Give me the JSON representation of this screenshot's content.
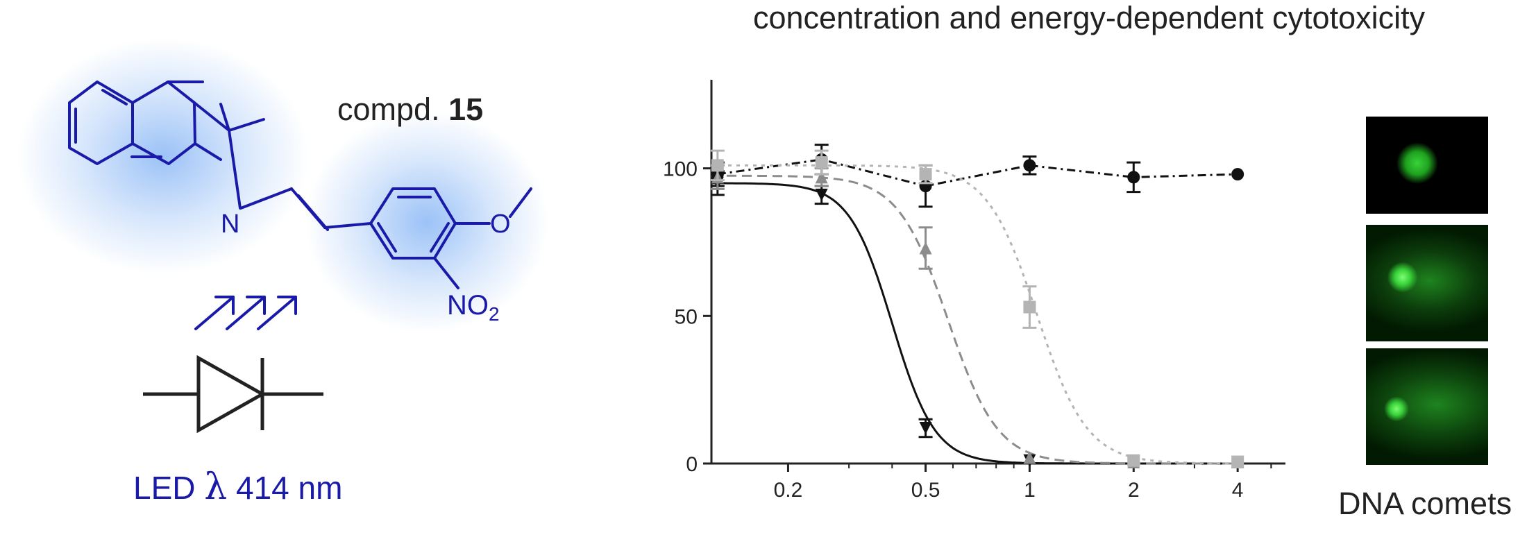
{
  "title": "concentration and energy-dependent cytotoxicity",
  "compound": {
    "prefix": "compd.",
    "number": "15"
  },
  "structure": {
    "n_label": "N",
    "o_label": "O",
    "no2_label": "NO",
    "no2_sub": "2"
  },
  "led": {
    "prefix": "LED",
    "lambda": "λ",
    "value": "414 nm"
  },
  "comets": {
    "label": "DNA comets",
    "panels": [
      {
        "tail": "none"
      },
      {
        "tail": "medium"
      },
      {
        "tail": "long"
      }
    ]
  },
  "colors": {
    "blue": "#1a1aa8",
    "glow": "#4a90f0",
    "series_black": "#111111",
    "series_darkgray": "#8c8c8c",
    "series_lightgray": "#b4b4b4",
    "comet": "#39d23a"
  },
  "chart_data": {
    "type": "scatter",
    "title": "",
    "xlabel": "",
    "ylabel": "",
    "xscale": "log",
    "xlim": [
      0.12,
      5.5
    ],
    "ylim": [
      0,
      130
    ],
    "x_ticks": [
      0.2,
      0.5,
      1,
      2,
      4
    ],
    "x_tick_labels": [
      "0.2",
      "0.5",
      "1",
      "2",
      "4"
    ],
    "y_ticks": [
      0,
      50,
      100
    ],
    "y_tick_labels": [
      "0",
      "50",
      "100"
    ],
    "grid": false,
    "legend": "none",
    "series": [
      {
        "marker": "circle",
        "line": "dash-dot",
        "color": "#111111",
        "points": [
          {
            "x": 0.125,
            "y": 98,
            "err": 4
          },
          {
            "x": 0.25,
            "y": 103,
            "err": 5
          },
          {
            "x": 0.5,
            "y": 94,
            "err": 7
          },
          {
            "x": 1,
            "y": 101,
            "err": 3
          },
          {
            "x": 2,
            "y": 97,
            "err": 5
          },
          {
            "x": 4,
            "y": 98,
            "err": 0
          }
        ],
        "fit": "connect"
      },
      {
        "marker": "triangle-down",
        "line": "solid",
        "color": "#111111",
        "points": [
          {
            "x": 0.125,
            "y": 95,
            "err": 4
          },
          {
            "x": 0.25,
            "y": 91,
            "err": 3
          },
          {
            "x": 0.5,
            "y": 12,
            "err": 3
          },
          {
            "x": 1,
            "y": 1,
            "err": 0
          },
          {
            "x": 2,
            "y": 0.5,
            "err": 0
          },
          {
            "x": 4,
            "y": 0.5,
            "err": 0
          }
        ],
        "fit": {
          "top": 95,
          "ec50": 0.4,
          "hill": 7
        }
      },
      {
        "marker": "triangle-up",
        "line": "dashed",
        "color": "#8c8c8c",
        "points": [
          {
            "x": 0.125,
            "y": 97,
            "err": 4
          },
          {
            "x": 0.25,
            "y": 97,
            "err": 3
          },
          {
            "x": 0.5,
            "y": 73,
            "err": 7
          },
          {
            "x": 1,
            "y": 2,
            "err": 0
          },
          {
            "x": 2,
            "y": 0.5,
            "err": 0
          },
          {
            "x": 4,
            "y": 0.5,
            "err": 0
          }
        ],
        "fit": {
          "top": 97.5,
          "ec50": 0.58,
          "hill": 6
        }
      },
      {
        "marker": "square",
        "line": "dotted",
        "color": "#b4b4b4",
        "points": [
          {
            "x": 0.125,
            "y": 101,
            "err": 5
          },
          {
            "x": 0.25,
            "y": 102,
            "err": 4
          },
          {
            "x": 0.5,
            "y": 98,
            "err": 3
          },
          {
            "x": 1,
            "y": 53,
            "err": 7
          },
          {
            "x": 2,
            "y": 1,
            "err": 0
          },
          {
            "x": 4,
            "y": 0.5,
            "err": 0
          }
        ],
        "fit": {
          "top": 101,
          "ec50": 1.05,
          "hill": 6
        }
      }
    ]
  }
}
